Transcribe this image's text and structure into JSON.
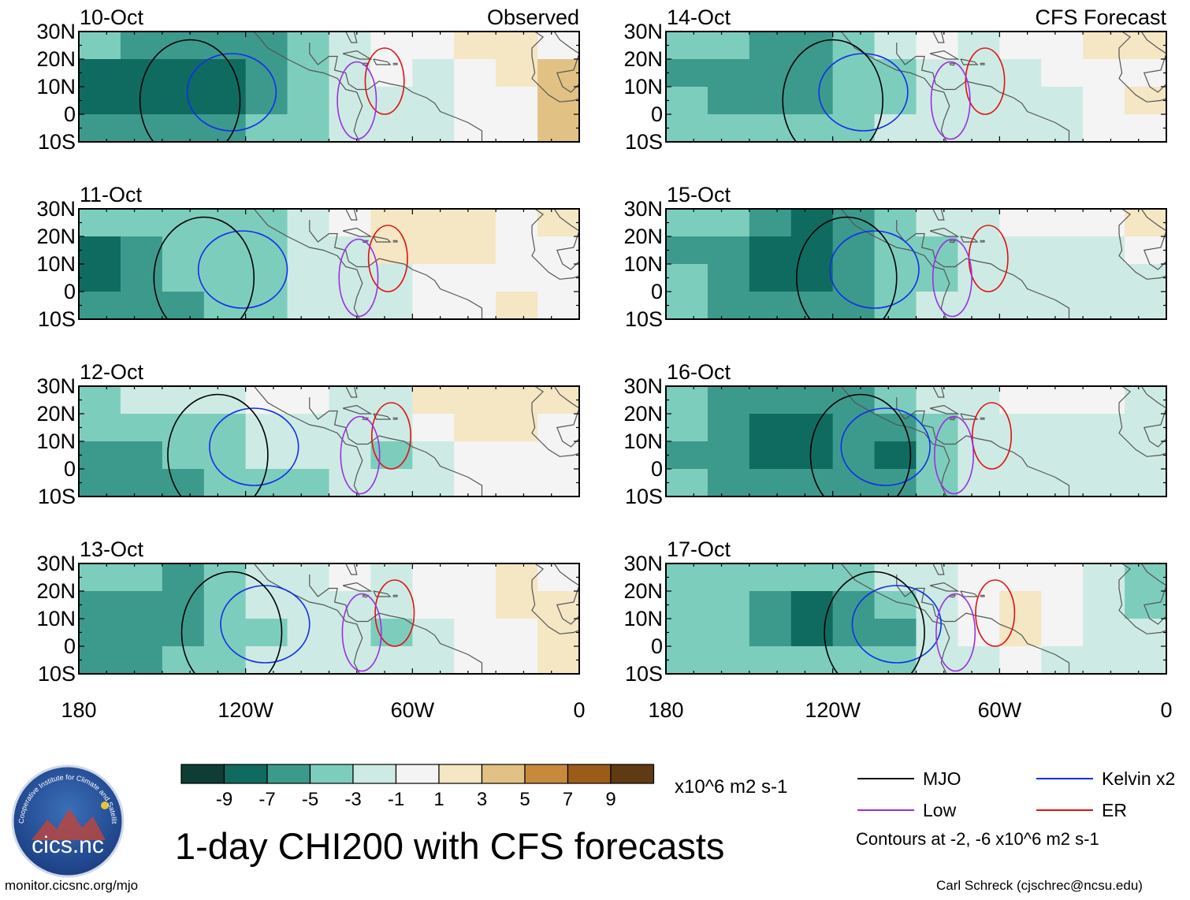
{
  "main_title": "1-day CHI200 with CFS forecasts",
  "footer": {
    "website": "monitor.cicsnc.org/mjo",
    "author": "Carl Schreck (cjschrec@ncsu.edu)"
  },
  "logo": {
    "text": "cics.nc",
    "ring_text": "Cooperative Institute for Climate and Satellites"
  },
  "colors": {
    "mjo": "#000000",
    "low": "#9b30e0",
    "kelvin": "#1030e8",
    "er": "#e01010",
    "land": "#555555"
  },
  "colorbar": {
    "unit": "x10^6 m2 s-1",
    "tick_labels": [
      "-9",
      "-7",
      "-5",
      "-3",
      "-1",
      "1",
      "3",
      "5",
      "7",
      "9"
    ],
    "bin_colors": [
      "#0d3d35",
      "#0f6b60",
      "#3c9a8c",
      "#7dcdbd",
      "#cdebe4",
      "#f4f4f4",
      "#f5e6c4",
      "#e2c284",
      "#c78a3c",
      "#9b5c1a",
      "#5f3a12"
    ]
  },
  "legend": {
    "items": [
      {
        "label": "MJO",
        "color": "#000000"
      },
      {
        "label": "Kelvin x2",
        "color": "#1030e8"
      },
      {
        "label": "Low",
        "color": "#9b30e0"
      },
      {
        "label": "ER",
        "color": "#e01010"
      }
    ],
    "note": "Contours at -2, -6 x10^6 m2 s-1"
  },
  "chart_data": {
    "type": "heatmap",
    "variable": "CHI200 (x10^6 m2 s-1)",
    "x_range": [
      -180,
      0
    ],
    "y_range": [
      -10,
      30
    ],
    "xticks": [
      -180,
      -120,
      -60,
      0
    ],
    "xtick_labels": [
      "180",
      "120W",
      "60W",
      "0"
    ],
    "yticks": [
      30,
      20,
      10,
      0,
      -10
    ],
    "ytick_labels": [
      "30N",
      "20N",
      "10N",
      "0",
      "10S"
    ],
    "contour_levels": [
      -2,
      -6
    ],
    "columns": [
      {
        "header": "Observed",
        "panels": [
          {
            "date": "10-Oct",
            "cells": [
              [
                -5,
                -6,
                -7,
                -7,
                -6,
                -4,
                -2,
                -1,
                -1,
                1,
                2,
                -1
              ],
              [
                -8,
                -8,
                -8,
                -9,
                -7,
                -5,
                -2,
                -1,
                -2,
                -1,
                1,
                3
              ],
              [
                -8,
                -8,
                -8,
                -8,
                -6,
                -4,
                -2,
                -2,
                -2,
                -1,
                -1,
                4
              ],
              [
                -7,
                -7,
                -6,
                -6,
                -4,
                -4,
                -2,
                -3,
                -2,
                -1,
                -1,
                3
              ]
            ]
          },
          {
            "date": "11-Oct",
            "cells": [
              [
                -5,
                -5,
                -4,
                -4,
                -5,
                -3,
                -1,
                1,
                1,
                1,
                -1,
                1
              ],
              [
                -9,
                -6,
                -4,
                -4,
                -5,
                -3,
                -2,
                1,
                2,
                1,
                -1,
                -1
              ],
              [
                -9,
                -6,
                -5,
                -5,
                -5,
                -3,
                -3,
                -2,
                -1,
                -1,
                -1,
                -1
              ],
              [
                -7,
                -6,
                -6,
                -5,
                -5,
                -3,
                -3,
                -2,
                -1,
                -1,
                1,
                -1
              ]
            ]
          },
          {
            "date": "12-Oct",
            "cells": [
              [
                -4,
                -3,
                -3,
                -2,
                -1,
                -1,
                -2,
                -2,
                1,
                1,
                1,
                1
              ],
              [
                -5,
                -4,
                -5,
                -4,
                -2,
                -2,
                -3,
                -3,
                -1,
                1,
                1,
                -1
              ],
              [
                -6,
                -6,
                -5,
                -4,
                -3,
                -3,
                -3,
                -5,
                -2,
                -1,
                -1,
                -1
              ],
              [
                -7,
                -7,
                -6,
                -5,
                -5,
                -4,
                -3,
                -3,
                -2,
                -1,
                -1,
                -1
              ]
            ]
          },
          {
            "date": "13-Oct",
            "cells": [
              [
                -4,
                -5,
                -6,
                -4,
                -3,
                -2,
                -1,
                -2,
                -1,
                -1,
                1,
                -1
              ],
              [
                -6,
                -6,
                -7,
                -5,
                -3,
                -2,
                -2,
                -3,
                -1,
                -1,
                1,
                1
              ],
              [
                -7,
                -6,
                -7,
                -5,
                -4,
                -3,
                -2,
                -4,
                -2,
                -1,
                -1,
                2
              ],
              [
                -7,
                -6,
                -5,
                -4,
                -3,
                -3,
                -3,
                -3,
                -2,
                -1,
                -1,
                1
              ]
            ]
          }
        ]
      },
      {
        "header": "CFS Forecast",
        "panels": [
          {
            "date": "14-Oct",
            "cells": [
              [
                -4,
                -4,
                -6,
                -6,
                -4,
                -2,
                -1,
                -2,
                -1,
                -1,
                1,
                1
              ],
              [
                -6,
                -6,
                -7,
                -7,
                -5,
                -4,
                -3,
                -3,
                -2,
                -1,
                -1,
                -1
              ],
              [
                -5,
                -6,
                -6,
                -6,
                -5,
                -4,
                -3,
                -3,
                -2,
                -2,
                -1,
                1
              ],
              [
                -5,
                -5,
                -5,
                -5,
                -4,
                -3,
                -3,
                -2,
                -2,
                -2,
                -1,
                -1
              ]
            ]
          },
          {
            "date": "15-Oct",
            "cells": [
              [
                -5,
                -5,
                -7,
                -8,
                -6,
                -5,
                -3,
                -2,
                -1,
                -1,
                -1,
                1
              ],
              [
                -6,
                -7,
                -8,
                -8,
                -6,
                -4,
                -4,
                -3,
                -2,
                -2,
                -2,
                -1
              ],
              [
                -5,
                -6,
                -8,
                -8,
                -6,
                -4,
                -4,
                -3,
                -3,
                -2,
                -2,
                -2
              ],
              [
                -5,
                -6,
                -7,
                -7,
                -6,
                -4,
                -3,
                -3,
                -3,
                -3,
                -2,
                -2
              ]
            ]
          },
          {
            "date": "16-Oct",
            "cells": [
              [
                -5,
                -6,
                -7,
                -7,
                -6,
                -4,
                -2,
                -2,
                -1,
                -1,
                -1,
                -2
              ],
              [
                -5,
                -6,
                -8,
                -8,
                -6,
                -6,
                -4,
                -3,
                -2,
                -2,
                -2,
                -3
              ],
              [
                -6,
                -7,
                -8,
                -8,
                -7,
                -8,
                -5,
                -3,
                -3,
                -2,
                -2,
                -3
              ],
              [
                -5,
                -6,
                -6,
                -6,
                -6,
                -7,
                -4,
                -3,
                -3,
                -2,
                -2,
                -2
              ]
            ]
          },
          {
            "date": "17-Oct",
            "cells": [
              [
                -4,
                -4,
                -4,
                -5,
                -5,
                -3,
                -2,
                -1,
                -1,
                -1,
                -3,
                -4
              ],
              [
                -5,
                -5,
                -6,
                -8,
                -6,
                -5,
                -3,
                -1,
                1,
                -1,
                -2,
                -4
              ],
              [
                -5,
                -5,
                -6,
                -8,
                -7,
                -6,
                -3,
                -1,
                1,
                -1,
                -2,
                -3
              ],
              [
                -4,
                -5,
                -5,
                -5,
                -5,
                -5,
                -3,
                -2,
                -1,
                -2,
                -2,
                -2
              ]
            ]
          }
        ]
      }
    ],
    "x_axis_labels": [
      "180",
      "120W",
      "60W",
      "0"
    ]
  }
}
